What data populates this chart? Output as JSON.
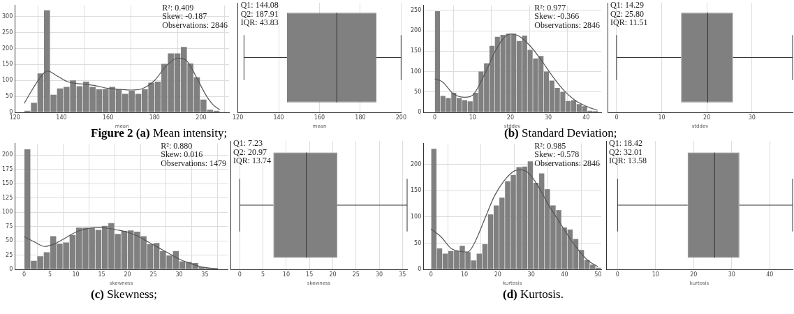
{
  "chart_data": [
    {
      "type": "histogram",
      "bins": [
        124,
        126.8,
        129.6,
        132.4,
        135.2,
        138,
        140.8,
        143.6,
        146.4,
        149.2,
        152,
        154.8,
        157.6,
        160.4,
        163.2,
        166,
        168.8,
        171.6,
        174.4,
        177.2,
        180,
        182.8,
        185.6,
        188.4,
        191.2,
        194,
        196.8,
        199.6,
        202.4,
        205.2,
        208
      ],
      "values": [
        5,
        30,
        122,
        320,
        55,
        75,
        80,
        100,
        82,
        96,
        80,
        72,
        73,
        80,
        72,
        58,
        68,
        58,
        72,
        93,
        96,
        152,
        185,
        185,
        205,
        153,
        110,
        40,
        8,
        5
      ],
      "color": "#808080",
      "xlabel": "mean",
      "xlim": [
        120,
        212
      ],
      "xticks": [
        120,
        140,
        160,
        180,
        200
      ],
      "ylim": [
        0,
        335
      ],
      "yticks": [
        0,
        50,
        100,
        150,
        200,
        250,
        300
      ],
      "grid": true,
      "series": [
        {
          "type": "line",
          "color": "#555555",
          "x": [
            124,
            130,
            134,
            138,
            143,
            150,
            155,
            160,
            165,
            170,
            175,
            180,
            185,
            190,
            194,
            198,
            202,
            205,
            208
          ],
          "values": [
            28,
            100,
            130,
            115,
            95,
            88,
            83,
            75,
            72,
            70,
            75,
            100,
            145,
            170,
            160,
            110,
            55,
            25,
            8
          ]
        }
      ],
      "annotations": [
        "R²: 0.409",
        "Skew: -0.187",
        "Observations: 2846",
        "Figure 2 (a)",
        "Mean intensity;"
      ]
    },
    {
      "type": "box",
      "orientation": "horizontal",
      "categories": [
        null
      ],
      "boxes": [
        {
          "low": 123,
          "q1": 144.08,
          "median": 168.5,
          "q3": 187.91,
          "high": 200
        }
      ],
      "color": "#808080",
      "xlabel": "mean",
      "xlim": [
        120,
        200
      ],
      "xticks": [
        120,
        140,
        160,
        180,
        200
      ],
      "grid": "x",
      "tick_labels": "x",
      "annotations": [
        "Q1: 144.08",
        "Q2: 187.91",
        "IQR: 43.83"
      ]
    },
    {
      "type": "histogram",
      "bins": [
        0,
        1.44,
        2.88,
        4.32,
        5.76,
        7.2,
        8.64,
        10.08,
        11.52,
        12.96,
        14.4,
        15.84,
        17.28,
        18.72,
        20.16,
        21.6,
        23.04,
        24.48,
        25.92,
        27.36,
        28.8,
        30.24,
        31.68,
        33.12,
        34.56,
        36,
        37.44,
        38.88,
        40.32,
        41.76,
        43.2
      ],
      "values": [
        248,
        40,
        35,
        48,
        35,
        30,
        27,
        48,
        100,
        120,
        163,
        185,
        190,
        193,
        193,
        175,
        188,
        153,
        132,
        138,
        100,
        78,
        60,
        50,
        28,
        30,
        20,
        15,
        4,
        3
      ],
      "color": "#808080",
      "xlabel": "stddev",
      "xlim": [
        -3,
        44
      ],
      "xticks": [
        0,
        10,
        20,
        30,
        40
      ],
      "ylim": [
        0,
        262
      ],
      "yticks": [
        0,
        50,
        100,
        150,
        200,
        250
      ],
      "grid": true,
      "series": [
        {
          "type": "line",
          "color": "#555555",
          "x": [
            0,
            2,
            5,
            8,
            10,
            13,
            16,
            18,
            20,
            22,
            25,
            28,
            31,
            34,
            37,
            40,
            43
          ],
          "values": [
            82,
            75,
            45,
            37,
            42,
            90,
            150,
            180,
            192,
            188,
            165,
            130,
            90,
            55,
            30,
            15,
            5
          ]
        }
      ],
      "annotations": [
        "R²: 0.977",
        "Skew: -0.366",
        "Observations: 2846",
        "(b)",
        "Standard Deviation;"
      ]
    },
    {
      "type": "box",
      "orientation": "horizontal",
      "categories": [
        null
      ],
      "boxes": [
        {
          "low": 0,
          "q1": 14.29,
          "median": 20.2,
          "q3": 25.8,
          "high": 39
        }
      ],
      "color": "#808080",
      "xlabel": "stddev",
      "xlim": [
        -2,
        39
      ],
      "xticks": [
        0,
        10,
        20,
        30
      ],
      "grid": "x",
      "tick_labels": "x",
      "annotations": [
        "Q1: 14.29",
        "Q2: 25.80",
        "IQR: 11.51"
      ]
    },
    {
      "type": "histogram",
      "bins": [
        0,
        1.25,
        2.5,
        3.75,
        5,
        6.25,
        7.5,
        8.75,
        10,
        11.25,
        12.5,
        13.75,
        15,
        16.25,
        17.5,
        18.75,
        20,
        21.25,
        22.5,
        23.75,
        25,
        26.25,
        27.5,
        28.75,
        30,
        31.25,
        32.5,
        33.75,
        35,
        36.25,
        37.5
      ],
      "values": [
        210,
        15,
        23,
        30,
        58,
        45,
        47,
        60,
        73,
        73,
        72,
        69,
        76,
        81,
        62,
        67,
        68,
        66,
        58,
        44,
        46,
        32,
        24,
        32,
        14,
        13,
        11,
        4,
        2,
        1
      ],
      "color": "#808080",
      "xlabel": "skewness",
      "xlim": [
        -1.8,
        39.4
      ],
      "xticks": [
        0,
        5,
        10,
        15,
        20,
        25,
        30,
        35
      ],
      "ylim": [
        0,
        220
      ],
      "yticks": [
        0,
        25,
        50,
        75,
        100,
        125,
        150,
        175,
        200
      ],
      "grid": true,
      "series": [
        {
          "type": "line",
          "color": "#555555",
          "x": [
            0,
            2,
            4,
            6,
            8,
            10,
            12,
            14,
            16,
            18,
            20,
            22,
            24,
            26,
            28,
            30,
            32,
            34,
            36,
            37.5
          ],
          "values": [
            57,
            48,
            40,
            45,
            55,
            65,
            71,
            73,
            72,
            69,
            65,
            58,
            48,
            38,
            28,
            18,
            11,
            5,
            2,
            1
          ]
        }
      ],
      "annotations": [
        "R²: 0.880",
        "Skew: 0.016",
        "Observations: 1479",
        "(c)",
        "Skewness;"
      ]
    },
    {
      "type": "box",
      "orientation": "horizontal",
      "categories": [
        null
      ],
      "boxes": [
        {
          "low": 0,
          "q1": 7.23,
          "median": 14.3,
          "q3": 20.97,
          "high": 36
        }
      ],
      "color": "#808080",
      "xlabel": "skewness",
      "xlim": [
        -2,
        36
      ],
      "xticks": [
        0,
        5,
        10,
        15,
        20,
        25,
        30,
        35
      ],
      "grid": "x",
      "tick_labels": "x",
      "annotations": [
        "Q1: 7.23",
        "Q2: 20.97",
        "IQR: 13.74"
      ]
    },
    {
      "type": "histogram",
      "bins": [
        0,
        1.7,
        3.4,
        5.1,
        6.8,
        8.5,
        10.2,
        11.9,
        13.6,
        15.3,
        17,
        18.7,
        20.4,
        22.1,
        23.8,
        25.5,
        27.2,
        28.9,
        30.6,
        32.3,
        34,
        35.7,
        37.4,
        39.1,
        40.8,
        42.5,
        44.2,
        45.9,
        47.6,
        49.3,
        51
      ],
      "values": [
        230,
        40,
        30,
        35,
        35,
        45,
        33,
        17,
        30,
        48,
        105,
        122,
        137,
        168,
        180,
        195,
        196,
        206,
        165,
        183,
        153,
        122,
        113,
        80,
        76,
        58,
        37,
        18,
        9,
        3
      ],
      "color": "#808080",
      "xlabel": "kurtosis",
      "xlim": [
        -2.3,
        51
      ],
      "xticks": [
        0,
        10,
        20,
        30,
        40,
        50
      ],
      "ylim": [
        0,
        240
      ],
      "yticks": [
        0,
        50,
        100,
        150,
        200
      ],
      "grid": true,
      "series": [
        {
          "type": "line",
          "color": "#555555",
          "x": [
            0,
            3,
            6,
            9,
            11,
            13,
            16,
            19,
            22,
            25,
            27,
            29,
            32,
            35,
            38,
            41,
            44,
            47,
            50
          ],
          "values": [
            77,
            62,
            40,
            34,
            33,
            50,
            95,
            140,
            170,
            188,
            190,
            185,
            160,
            125,
            95,
            65,
            38,
            17,
            5
          ]
        }
      ],
      "annotations": [
        "R²: 0.985",
        "Skew: -0.578",
        "Observations: 2846",
        "(d)",
        "Kurtosis."
      ]
    },
    {
      "type": "box",
      "orientation": "horizontal",
      "categories": [
        null
      ],
      "boxes": [
        {
          "low": 0,
          "q1": 18.42,
          "median": 25.5,
          "q3": 32.01,
          "high": 46
        }
      ],
      "color": "#808080",
      "xlabel": "kurtosis",
      "xlim": [
        -3,
        46
      ],
      "xticks": [
        0,
        10,
        20,
        30,
        40
      ],
      "grid": "x",
      "tick_labels": "x",
      "annotations": [
        "Q1: 18.42",
        "Q2: 32.01",
        "IQR: 13.58"
      ]
    }
  ]
}
